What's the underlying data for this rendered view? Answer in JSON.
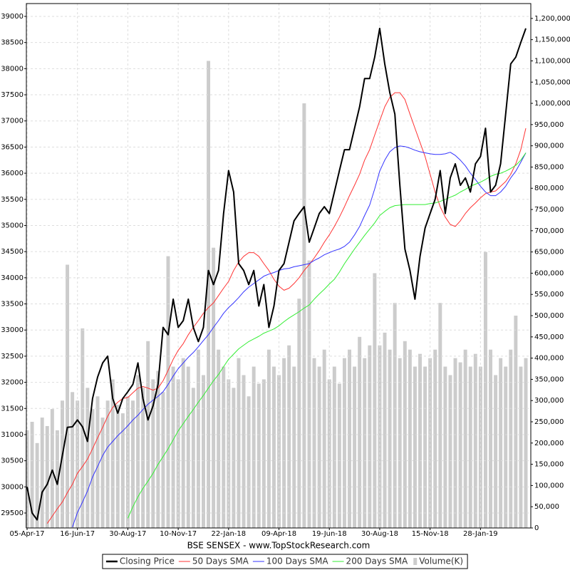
{
  "chart_data": {
    "type": "line",
    "title": "BSE SENSEX - www.TopStockResearch.com",
    "grid": true,
    "categories": [
      "05-Apr-17",
      null,
      null,
      null,
      null,
      null,
      null,
      null,
      null,
      null,
      "16-Jun-17",
      null,
      null,
      null,
      null,
      null,
      null,
      null,
      null,
      null,
      "30-Aug-17",
      null,
      null,
      null,
      null,
      null,
      null,
      null,
      null,
      null,
      "10-Nov-17",
      null,
      null,
      null,
      null,
      null,
      null,
      null,
      null,
      null,
      "22-Jan-18",
      null,
      null,
      null,
      null,
      null,
      null,
      null,
      null,
      null,
      "09-Apr-18",
      null,
      null,
      null,
      null,
      null,
      null,
      null,
      null,
      null,
      "19-Jun-18",
      null,
      null,
      null,
      null,
      null,
      null,
      null,
      null,
      null,
      "30-Aug-18",
      null,
      null,
      null,
      null,
      null,
      null,
      null,
      null,
      null,
      "15-Nov-18",
      null,
      null,
      null,
      null,
      null,
      null,
      null,
      null,
      null,
      "28-Jan-19",
      null,
      null,
      null,
      null,
      null,
      null,
      null,
      null,
      null
    ],
    "ylim": [
      29214,
      39245
    ],
    "yticks": [
      29500,
      30000,
      30500,
      31000,
      31500,
      32000,
      32500,
      33000,
      33500,
      34000,
      34500,
      35000,
      35500,
      36000,
      36500,
      37000,
      37500,
      38000,
      38500,
      39000
    ],
    "y2lim": [
      0,
      1235000
    ],
    "y2ticks": [
      0,
      {
        "value": 50000,
        "label": "50,000"
      },
      {
        "value": 100000,
        "label": "100,000"
      },
      {
        "value": 150000,
        "label": "150,000"
      },
      {
        "value": 200000,
        "label": "200,000"
      },
      {
        "value": 250000,
        "label": "250,000"
      },
      {
        "value": 300000,
        "label": "300,000"
      },
      {
        "value": 350000,
        "label": "350,000"
      },
      {
        "value": 400000,
        "label": "400,000"
      },
      {
        "value": 450000,
        "label": "450,000"
      },
      {
        "value": 500000,
        "label": "500,000"
      },
      {
        "value": 550000,
        "label": "550,000"
      },
      {
        "value": 600000,
        "label": "600,000"
      },
      {
        "value": 650000,
        "label": "650,000"
      },
      {
        "value": 700000,
        "label": "700,000"
      },
      {
        "value": 750000,
        "label": "750,000"
      },
      {
        "value": 800000,
        "label": "800,000"
      },
      {
        "value": 850000,
        "label": "850,000"
      },
      {
        "value": 900000,
        "label": "900,000"
      },
      {
        "value": 950000,
        "label": "950,000"
      },
      {
        "value": 1000000,
        "label": "1,000,000"
      },
      {
        "value": 1050000,
        "label": "1,050,000"
      },
      {
        "value": 1100000,
        "label": "1,100,000"
      },
      {
        "value": 1150000,
        "label": "1,150,000"
      },
      {
        "value": 1200000,
        "label": "1,200,000"
      }
    ],
    "series": [
      {
        "name": "Closing Price",
        "color": "#000000",
        "values": [
          30000,
          29500,
          29370,
          29900,
          30050,
          30320,
          30050,
          30600,
          31140,
          31150,
          31280,
          31150,
          30870,
          31690,
          32100,
          32370,
          32500,
          31690,
          31410,
          31690,
          31820,
          31960,
          32370,
          31690,
          31280,
          31550,
          31960,
          33050,
          32910,
          33590,
          33050,
          33180,
          33590,
          33050,
          32780,
          33050,
          34140,
          33870,
          34140,
          35230,
          36050,
          35640,
          34270,
          34140,
          33870,
          34140,
          33460,
          33870,
          33050,
          33460,
          34140,
          34270,
          34680,
          35090,
          35230,
          35360,
          34680,
          34950,
          35230,
          35360,
          35230,
          35640,
          36050,
          36450,
          36450,
          36860,
          37270,
          37810,
          37810,
          38220,
          38770,
          38090,
          37540,
          37130,
          35770,
          34550,
          34140,
          33590,
          34410,
          34950,
          35230,
          35500,
          36050,
          35230,
          35910,
          36180,
          35770,
          35910,
          35640,
          36180,
          36320,
          36860,
          35640,
          35770,
          36180,
          37130,
          38090,
          38220,
          38500,
          38770
        ]
      },
      {
        "name": "50 Days SMA",
        "color": "#ff3333",
        "values": [
          null,
          null,
          null,
          null,
          29300,
          29440,
          29580,
          29710,
          29890,
          30050,
          30260,
          30390,
          30530,
          30730,
          30940,
          31140,
          31350,
          31520,
          31620,
          31690,
          31710,
          31800,
          31890,
          31920,
          31890,
          31850,
          31890,
          32030,
          32230,
          32440,
          32610,
          32740,
          32910,
          33050,
          33180,
          33320,
          33430,
          33520,
          33660,
          33800,
          33930,
          34140,
          34300,
          34410,
          34480,
          34480,
          34410,
          34270,
          34140,
          33970,
          33840,
          33760,
          33800,
          33890,
          34000,
          34140,
          34250,
          34380,
          34520,
          34680,
          34820,
          34980,
          35160,
          35360,
          35570,
          35770,
          35980,
          36250,
          36450,
          36730,
          37000,
          37270,
          37450,
          37540,
          37540,
          37410,
          37130,
          36860,
          36590,
          36320,
          35980,
          35640,
          35360,
          35160,
          35020,
          34980,
          35090,
          35230,
          35340,
          35430,
          35530,
          35610,
          35640,
          35660,
          35750,
          35840,
          35980,
          36180,
          36450,
          36860
        ]
      },
      {
        "name": "100 Days SMA",
        "color": "#3333ff",
        "values": [
          null,
          null,
          null,
          null,
          null,
          null,
          null,
          null,
          null,
          29230,
          29510,
          29710,
          29920,
          30190,
          30390,
          30600,
          30760,
          30870,
          30980,
          31070,
          31170,
          31280,
          31370,
          31480,
          31580,
          31660,
          31730,
          31820,
          31960,
          32120,
          32260,
          32370,
          32480,
          32570,
          32680,
          32800,
          32910,
          33050,
          33180,
          33320,
          33430,
          33520,
          33620,
          33730,
          33820,
          33890,
          33960,
          34030,
          34070,
          34100,
          34140,
          34170,
          34180,
          34210,
          34230,
          34250,
          34270,
          34330,
          34380,
          34440,
          34480,
          34520,
          34550,
          34600,
          34680,
          34820,
          34980,
          35190,
          35390,
          35700,
          36040,
          36250,
          36410,
          36490,
          36520,
          36510,
          36480,
          36440,
          36410,
          36390,
          36370,
          36360,
          36360,
          36370,
          36400,
          36340,
          36250,
          36140,
          36000,
          35880,
          35750,
          35640,
          35570,
          35570,
          35640,
          35750,
          35910,
          36040,
          36210,
          36390
        ]
      },
      {
        "name": "200 Days SMA",
        "color": "#33ee33",
        "values": [
          null,
          null,
          null,
          null,
          null,
          null,
          null,
          null,
          null,
          null,
          null,
          null,
          null,
          null,
          null,
          null,
          null,
          null,
          null,
          null,
          29400,
          29620,
          29810,
          29970,
          30110,
          30260,
          30430,
          30580,
          30730,
          30900,
          31070,
          31210,
          31350,
          31480,
          31620,
          31750,
          31890,
          32030,
          32150,
          32300,
          32440,
          32540,
          32640,
          32710,
          32780,
          32830,
          32880,
          32940,
          32980,
          33020,
          33080,
          33160,
          33230,
          33290,
          33350,
          33420,
          33480,
          33590,
          33690,
          33780,
          33880,
          33970,
          34110,
          34270,
          34410,
          34550,
          34680,
          34810,
          34930,
          35050,
          35190,
          35270,
          35340,
          35380,
          35390,
          35400,
          35400,
          35400,
          35400,
          35400,
          35420,
          35430,
          35460,
          35500,
          35540,
          35580,
          35640,
          35690,
          35750,
          35790,
          35830,
          35880,
          35940,
          35980,
          36000,
          36040,
          36090,
          36150,
          36250,
          36390
        ]
      },
      {
        "name": "Volume(K)",
        "type": "bar",
        "axis": "y2",
        "color": "#cccccc",
        "values": [
          230000,
          250000,
          200000,
          260000,
          240000,
          280000,
          230000,
          300000,
          620000,
          320000,
          300000,
          470000,
          330000,
          280000,
          310000,
          260000,
          300000,
          350000,
          290000,
          270000,
          310000,
          300000,
          360000,
          330000,
          440000,
          350000,
          370000,
          320000,
          640000,
          380000,
          350000,
          400000,
          380000,
          330000,
          420000,
          360000,
          1100000,
          660000,
          420000,
          380000,
          350000,
          330000,
          400000,
          360000,
          310000,
          380000,
          340000,
          350000,
          420000,
          380000,
          360000,
          400000,
          430000,
          380000,
          540000,
          1000000,
          630000,
          400000,
          380000,
          420000,
          350000,
          380000,
          340000,
          400000,
          420000,
          380000,
          450000,
          400000,
          430000,
          600000,
          430000,
          460000,
          420000,
          530000,
          400000,
          440000,
          420000,
          380000,
          410000,
          380000,
          400000,
          420000,
          530000,
          380000,
          360000,
          400000,
          390000,
          420000,
          380000,
          410000,
          380000,
          650000,
          420000,
          360000,
          400000,
          380000,
          420000,
          500000,
          380000,
          400000
        ]
      }
    ]
  }
}
